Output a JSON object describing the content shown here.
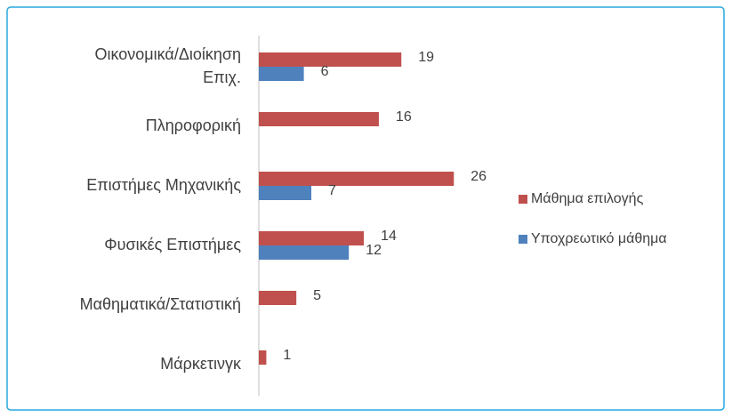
{
  "chart_data": {
    "type": "bar",
    "orientation": "horizontal",
    "categories": [
      "Οικονομικά/Διοίκηση\nΕπιχ.",
      "Πληροφορική",
      "Επιστήμες Μηχανικής",
      "Φυσικές Επιστήμες",
      "Μαθηματικά/Στατιστική",
      "Μάρκετινγκ"
    ],
    "series": [
      {
        "name": "Μάθημα επιλογής",
        "color": "#c0504d",
        "values": [
          19,
          16,
          26,
          14,
          5,
          1
        ]
      },
      {
        "name": "Υποχρεωτικό μάθημα",
        "color": "#4f81bd",
        "values": [
          6,
          null,
          7,
          12,
          null,
          null
        ]
      }
    ],
    "xlim": [
      0,
      30
    ],
    "legend": "right"
  }
}
